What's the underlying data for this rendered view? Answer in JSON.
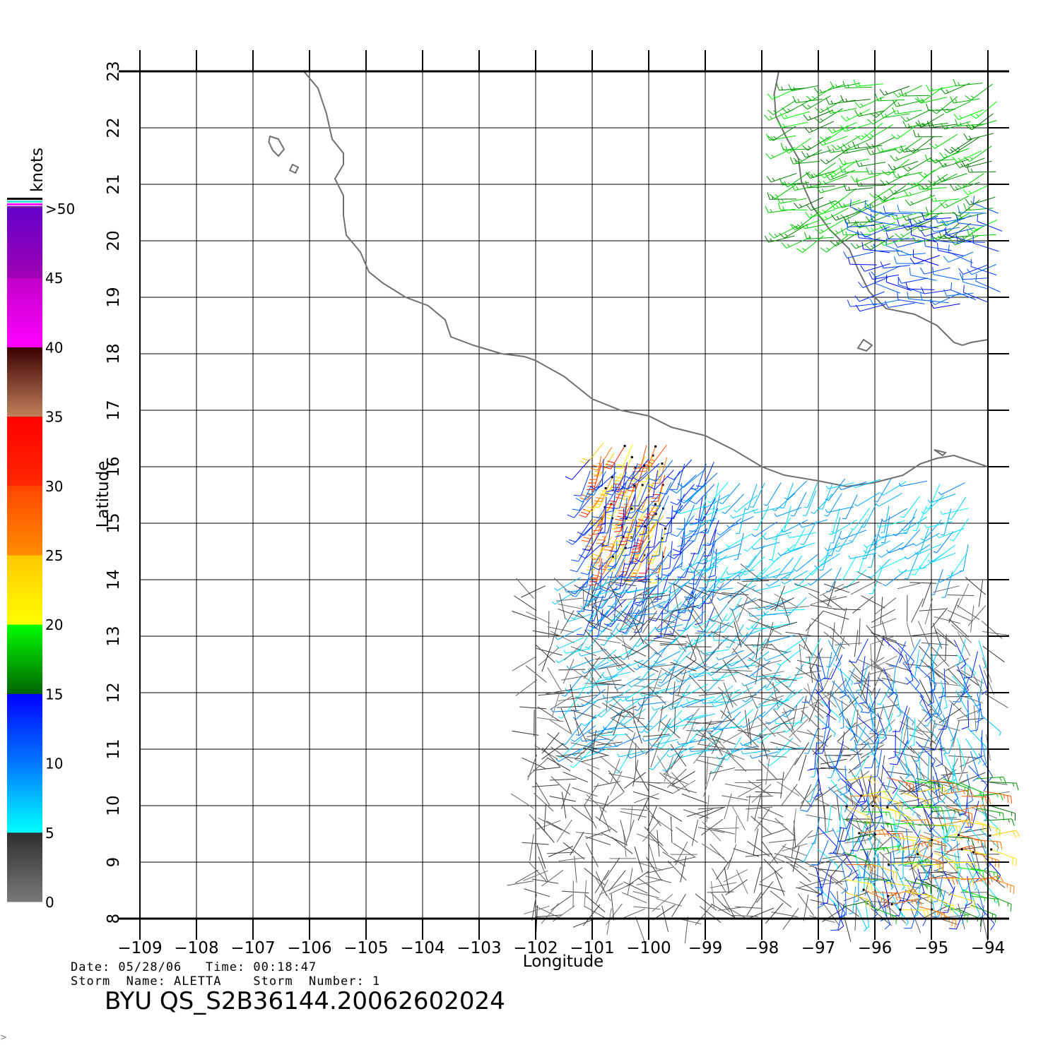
{
  "chart_data": {
    "type": "map",
    "map_kind": "scatterometer wind vector field",
    "xlabel": "Longitude",
    "ylabel": "Latitude",
    "xlim": [
      -109,
      -94
    ],
    "ylim": [
      8,
      23
    ],
    "x_ticks": [
      "−109",
      "−108",
      "−107",
      "−106",
      "−105",
      "−104",
      "−103",
      "−102",
      "−101",
      "−100",
      "−99",
      "−98",
      "−97",
      "−96",
      "−95",
      "−94"
    ],
    "y_ticks": [
      "8",
      "9",
      "10",
      "11",
      "12",
      "13",
      "14",
      "15",
      "16",
      "17",
      "18",
      "19",
      "20",
      "21",
      "22",
      "23"
    ],
    "grid": true,
    "colorbar": {
      "units": "knots",
      "labels": [
        "0",
        "5",
        "10",
        "15",
        "20",
        "25",
        "30",
        "35",
        "40",
        "45",
        ">50"
      ],
      "bins": [
        {
          "from": 0,
          "to": 5,
          "bottom": "#7a7a7a",
          "top": "#2e2e2e"
        },
        {
          "from": 5,
          "to": 10,
          "bottom": "#00ffff",
          "top": "#0078ff"
        },
        {
          "from": 10,
          "to": 15,
          "bottom": "#0078ff",
          "top": "#0000ff"
        },
        {
          "from": 15,
          "to": 20,
          "bottom": "#006400",
          "top": "#00ff00"
        },
        {
          "from": 20,
          "to": 25,
          "bottom": "#ffff00",
          "top": "#ffc800"
        },
        {
          "from": 25,
          "to": 30,
          "bottom": "#ff8c00",
          "top": "#ff4600"
        },
        {
          "from": 30,
          "to": 35,
          "bottom": "#ff2800",
          "top": "#ff0000"
        },
        {
          "from": 35,
          "to": 40,
          "bottom": "#c0805a",
          "top": "#3c0000"
        },
        {
          "from": 40,
          "to": 45,
          "bottom": "#ff00ff",
          "top": "#c000c8"
        },
        {
          "from": 45,
          "to": 50,
          "bottom": "#a000b4",
          "top": "#6400c8"
        }
      ],
      "cap_colors": [
        "#6a1aa8",
        "#ff00ff",
        "#40e0d0",
        "#000000"
      ]
    },
    "coastlines": [
      {
        "name": "mexico-pacific-coast",
        "points": [
          [
            -106.1,
            23
          ],
          [
            -105.85,
            22.7
          ],
          [
            -105.7,
            22.25
          ],
          [
            -105.6,
            21.8
          ],
          [
            -105.4,
            21.55
          ],
          [
            -105.4,
            21.35
          ],
          [
            -105.55,
            21.1
          ],
          [
            -105.4,
            20.8
          ],
          [
            -105.4,
            20.45
          ],
          [
            -105.35,
            20.1
          ],
          [
            -105.1,
            19.8
          ],
          [
            -104.95,
            19.45
          ],
          [
            -104.7,
            19.25
          ],
          [
            -104.3,
            19.0
          ],
          [
            -103.9,
            18.85
          ],
          [
            -103.6,
            18.6
          ],
          [
            -103.5,
            18.3
          ],
          [
            -103.1,
            18.15
          ],
          [
            -102.6,
            18.0
          ],
          [
            -102.2,
            17.95
          ],
          [
            -102.0,
            17.88
          ],
          [
            -101.5,
            17.6
          ],
          [
            -101.0,
            17.2
          ],
          [
            -100.5,
            17.0
          ],
          [
            -100.0,
            16.9
          ],
          [
            -99.6,
            16.7
          ],
          [
            -99.0,
            16.55
          ],
          [
            -98.5,
            16.3
          ],
          [
            -98.0,
            16.0
          ],
          [
            -97.6,
            15.85
          ],
          [
            -97.0,
            15.75
          ],
          [
            -96.5,
            15.65
          ],
          [
            -96.0,
            15.72
          ],
          [
            -95.5,
            15.85
          ],
          [
            -95.2,
            16.05
          ],
          [
            -94.9,
            16.15
          ],
          [
            -94.6,
            16.2
          ],
          [
            -94.3,
            16.1
          ],
          [
            -94.0,
            16.0
          ]
        ]
      },
      {
        "name": "gulf-of-mexico-coast",
        "points": [
          [
            -97.7,
            23
          ],
          [
            -97.78,
            22.6
          ],
          [
            -97.75,
            22.2
          ],
          [
            -97.55,
            21.8
          ],
          [
            -97.35,
            21.45
          ],
          [
            -97.3,
            21.05
          ],
          [
            -97.1,
            20.6
          ],
          [
            -96.8,
            20.2
          ],
          [
            -96.45,
            19.85
          ],
          [
            -96.3,
            19.5
          ],
          [
            -96.1,
            19.1
          ],
          [
            -95.8,
            18.8
          ],
          [
            -95.3,
            18.7
          ],
          [
            -94.9,
            18.5
          ],
          [
            -94.6,
            18.2
          ],
          [
            -94.45,
            18.15
          ],
          [
            -94.3,
            18.2
          ],
          [
            -94.0,
            18.25
          ]
        ]
      }
    ],
    "islands": [
      {
        "name": "islas-marias",
        "points": [
          [
            -106.7,
            21.85
          ],
          [
            -106.55,
            21.8
          ],
          [
            -106.45,
            21.62
          ],
          [
            -106.55,
            21.5
          ],
          [
            -106.65,
            21.6
          ],
          [
            -106.72,
            21.75
          ],
          [
            -106.7,
            21.85
          ]
        ]
      },
      {
        "name": "isla-isabel",
        "points": [
          [
            -106.3,
            21.35
          ],
          [
            -106.2,
            21.3
          ],
          [
            -106.25,
            21.2
          ],
          [
            -106.35,
            21.25
          ],
          [
            -106.3,
            21.35
          ]
        ]
      },
      {
        "name": "los-tuxtlas-lake",
        "points": [
          [
            -96.2,
            18.25
          ],
          [
            -96.05,
            18.15
          ],
          [
            -96.15,
            18.05
          ],
          [
            -96.3,
            18.1
          ],
          [
            -96.2,
            18.25
          ]
        ]
      },
      {
        "name": "laguna-superior",
        "points": [
          [
            -94.95,
            16.3
          ],
          [
            -94.75,
            16.25
          ],
          [
            -94.8,
            16.2
          ],
          [
            -94.95,
            16.3
          ]
        ]
      }
    ],
    "wind_regions": [
      {
        "name": "gulf-north-onshore",
        "lon": [
          -97.4,
          -93.8
        ],
        "lat": [
          20.1,
          22.8
        ],
        "step": 0.22,
        "speeds": [
          15,
          20
        ],
        "dir": 250,
        "dir_jitter": 20
      },
      {
        "name": "gulf-south-onshore",
        "lon": [
          -96.0,
          -93.8
        ],
        "lat": [
          18.9,
          20.5
        ],
        "step": 0.22,
        "speeds": [
          10,
          15
        ],
        "dir": 270,
        "dir_jitter": 25
      },
      {
        "name": "storm-core-high-wind",
        "lon": [
          -100.8,
          -99.6
        ],
        "lat": [
          14.4,
          16.4
        ],
        "step": 0.18,
        "speeds": [
          20,
          33
        ],
        "dir": 205,
        "dir_jitter": 15
      },
      {
        "name": "storm-periphery",
        "lon": [
          -101.0,
          -98.6
        ],
        "lat": [
          13.5,
          16.2
        ],
        "step": 0.2,
        "speeds": [
          10,
          15
        ],
        "dir": 205,
        "dir_jitter": 25
      },
      {
        "name": "nearshore-light",
        "lon": [
          -99.0,
          -94.3
        ],
        "lat": [
          14.2,
          15.9
        ],
        "step": 0.22,
        "speeds": [
          5,
          10
        ],
        "dir": 225,
        "dir_jitter": 35
      },
      {
        "name": "open-ocean-moderate",
        "lon": [
          -101.2,
          -97.2
        ],
        "lat": [
          11.0,
          14.2
        ],
        "step": 0.22,
        "speeds": [
          5,
          10
        ],
        "dir": 240,
        "dir_jitter": 30
      },
      {
        "name": "open-ocean-calm",
        "lon": [
          -102.0,
          -94.0
        ],
        "lat": [
          8.0,
          14.0
        ],
        "step": 0.22,
        "speeds": [
          0,
          5
        ],
        "dir": 200,
        "dir_jitter": 120
      },
      {
        "name": "southeast-variable",
        "lon": [
          -97.0,
          -94.0
        ],
        "lat": [
          8.3,
          13.0
        ],
        "step": 0.22,
        "speeds": [
          5,
          15
        ],
        "dir": 170,
        "dir_jitter": 40
      },
      {
        "name": "southeast-convective",
        "lon": [
          -96.5,
          -94.0
        ],
        "lat": [
          8.2,
          10.5
        ],
        "step": 0.25,
        "speeds": [
          15,
          30
        ],
        "dir": 95,
        "dir_jitter": 20
      }
    ]
  },
  "footer": {
    "date_line": "Date: 05/28/06   Time: 00:18:47",
    "storm_line": "Storm  Name: ALETTA    Storm  Number: 1",
    "title": "BYU  QS_S2B36144.20062602024",
    "corner_mark": ">"
  }
}
